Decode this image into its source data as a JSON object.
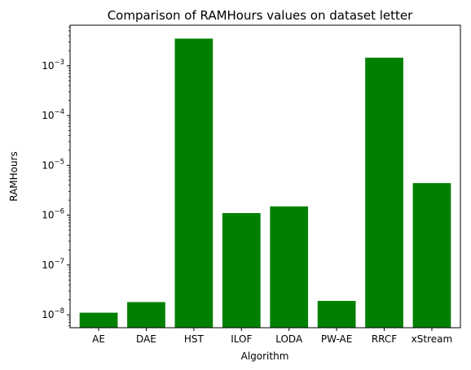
{
  "chart_data": {
    "type": "bar",
    "title": "Comparison of RAMHours values on dataset letter",
    "xlabel": "Algorithm",
    "ylabel": "RAMHours",
    "yscale": "log",
    "ylim": [
      5.5e-09,
      0.0065
    ],
    "yticks": [
      {
        "base": "10",
        "exp": "−8",
        "value": 1e-08
      },
      {
        "base": "10",
        "exp": "−7",
        "value": 1e-07
      },
      {
        "base": "10",
        "exp": "−6",
        "value": 1e-06
      },
      {
        "base": "10",
        "exp": "−5",
        "value": 1e-05
      },
      {
        "base": "10",
        "exp": "−4",
        "value": 0.0001
      },
      {
        "base": "10",
        "exp": "−3",
        "value": 0.001
      }
    ],
    "categories": [
      "AE",
      "DAE",
      "HST",
      "ILOF",
      "LODA",
      "PW-AE",
      "RRCF",
      "xStream"
    ],
    "values": [
      1.1e-08,
      1.8e-08,
      0.0035,
      1.1e-06,
      1.5e-06,
      1.9e-08,
      0.00145,
      4.4e-06
    ],
    "bar_color": "#008000",
    "grid": false,
    "legend": "none"
  }
}
